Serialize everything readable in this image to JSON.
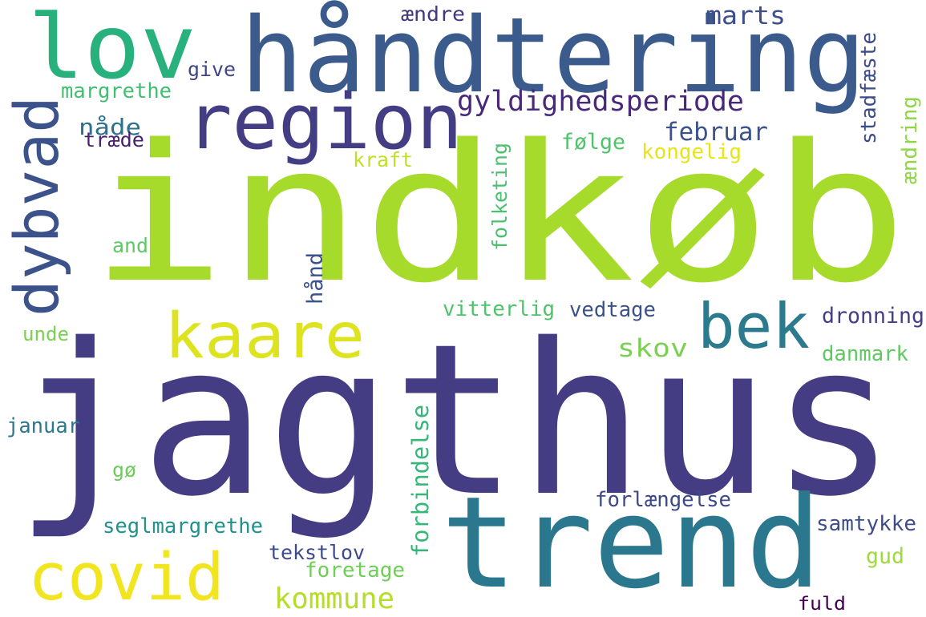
{
  "words": [
    {
      "text": "indkøb",
      "color": "#a6db2b",
      "vertical": false
    },
    {
      "text": "jagthus",
      "color": "#453d83",
      "vertical": false
    },
    {
      "text": "håndtering",
      "color": "#3a5b8c",
      "vertical": false
    },
    {
      "text": "trend",
      "color": "#2b788e",
      "vertical": false
    },
    {
      "text": "lov",
      "color": "#28b17c",
      "vertical": false
    },
    {
      "text": "region",
      "color": "#433d84",
      "vertical": false
    },
    {
      "text": "dybvad",
      "color": "#3b528b",
      "vertical": true
    },
    {
      "text": "kaare",
      "color": "#dde41f",
      "vertical": false
    },
    {
      "text": "bek",
      "color": "#2c7a8d",
      "vertical": false
    },
    {
      "text": "covid",
      "color": "#f0e51f",
      "vertical": false
    },
    {
      "text": "gyldighedsperiode",
      "color": "#482979",
      "vertical": false
    },
    {
      "text": "marts",
      "color": "#3d4e8a",
      "vertical": false
    },
    {
      "text": "februar",
      "color": "#3b528b",
      "vertical": false
    },
    {
      "text": "stadfæste",
      "color": "#3d4d8a",
      "vertical": true
    },
    {
      "text": "ændring",
      "color": "#8fd744",
      "vertical": true
    },
    {
      "text": "ændre",
      "color": "#453781",
      "vertical": false
    },
    {
      "text": "give",
      "color": "#414487",
      "vertical": false
    },
    {
      "text": "margrethe",
      "color": "#42be71",
      "vertical": false
    },
    {
      "text": "nåde",
      "color": "#2c728e",
      "vertical": false
    },
    {
      "text": "træde",
      "color": "#481f70",
      "vertical": false
    },
    {
      "text": "følge",
      "color": "#4ec36b",
      "vertical": false
    },
    {
      "text": "kongelig",
      "color": "#e7e419",
      "vertical": false
    },
    {
      "text": "kraft",
      "color": "#c2df23",
      "vertical": false
    },
    {
      "text": "folketing",
      "color": "#4ac16d",
      "vertical": true
    },
    {
      "text": "and",
      "color": "#5ec962",
      "vertical": false
    },
    {
      "text": "hånd",
      "color": "#3b528b",
      "vertical": true
    },
    {
      "text": "vitterlig",
      "color": "#4ec36b",
      "vertical": false
    },
    {
      "text": "vedtage",
      "color": "#3b528b",
      "vertical": false
    },
    {
      "text": "dronning",
      "color": "#433e85",
      "vertical": false
    },
    {
      "text": "skov",
      "color": "#7ad151",
      "vertical": false
    },
    {
      "text": "unde",
      "color": "#7ad151",
      "vertical": false
    },
    {
      "text": "danmark",
      "color": "#5ec962",
      "vertical": false
    },
    {
      "text": "januar",
      "color": "#2a788e",
      "vertical": false
    },
    {
      "text": "forbindelse",
      "color": "#35b779",
      "vertical": true
    },
    {
      "text": "gø",
      "color": "#6ccd5a",
      "vertical": false
    },
    {
      "text": "forlængelse",
      "color": "#3e4989",
      "vertical": false
    },
    {
      "text": "samtykke",
      "color": "#3e4c8a",
      "vertical": false
    },
    {
      "text": "seglmargrethe",
      "color": "#21918c",
      "vertical": false
    },
    {
      "text": "tekstlov",
      "color": "#3e4a89",
      "vertical": false
    },
    {
      "text": "foretage",
      "color": "#6ece58",
      "vertical": false
    },
    {
      "text": "gud",
      "color": "#9fda3a",
      "vertical": false
    },
    {
      "text": "kommune",
      "color": "#b5de2b",
      "vertical": false
    },
    {
      "text": "fuld",
      "color": "#440154",
      "vertical": false
    }
  ]
}
